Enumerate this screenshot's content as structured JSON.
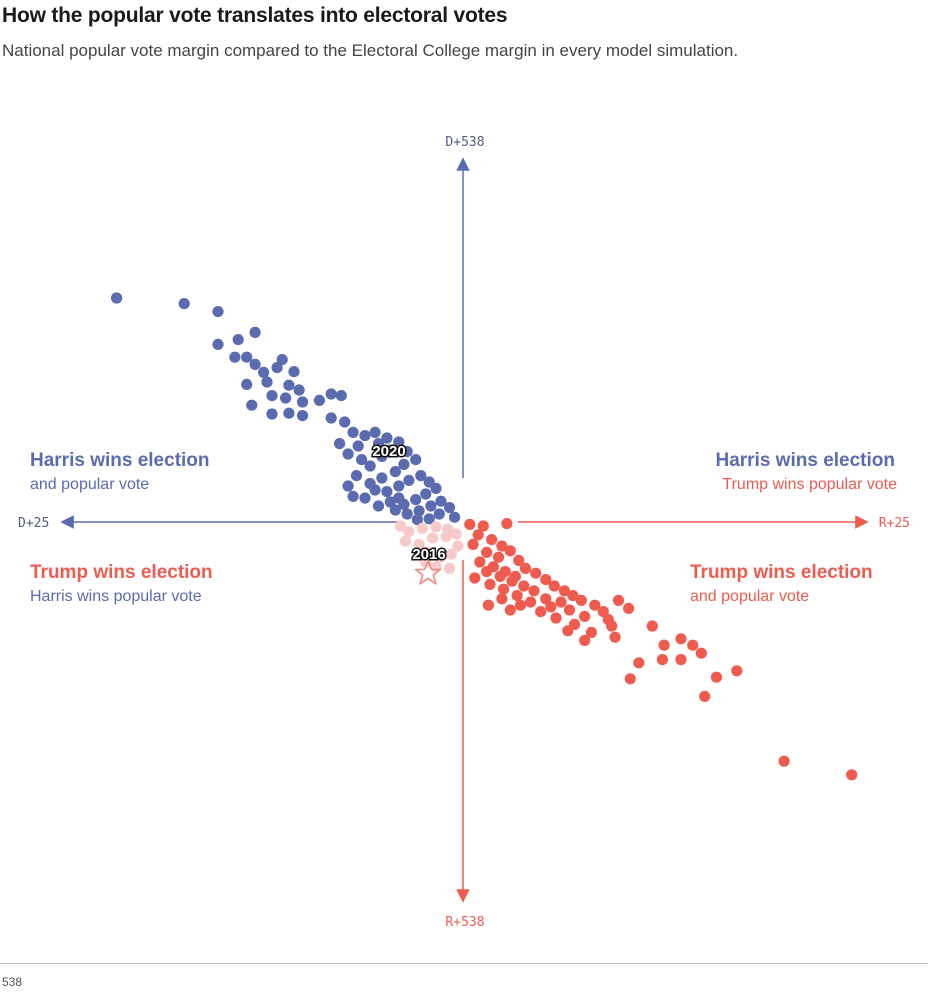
{
  "header": {
    "title": "How the popular vote translates into electoral votes",
    "subtitle": "National popular vote margin compared to the Electoral College margin in every model simulation."
  },
  "source": "538",
  "colors": {
    "harris": "#5b6bb0",
    "trump": "#ef5b4f",
    "trump_light": "#f7c9c9",
    "axis_text": "#555a80"
  },
  "chart_data": {
    "type": "scatter",
    "x_axis": {
      "left_label": "D+25",
      "right_label": "R+25",
      "range": [
        -25,
        25
      ],
      "unit": "popular vote margin (pts, R positive)"
    },
    "y_axis": {
      "top_label": "D+538",
      "bottom_label": "R+538",
      "range": [
        -538,
        538
      ],
      "unit": "electoral vote margin (D positive)"
    },
    "grid": false,
    "quadrants": {
      "top_left": {
        "title": "Harris wins election",
        "subtitle": "and popular vote"
      },
      "top_right": {
        "title": "Harris wins election",
        "subtitle": "Trump wins popular vote"
      },
      "bottom_left": {
        "title": "Trump wins election",
        "subtitle": "Harris wins popular vote"
      },
      "bottom_right": {
        "title": "Trump wins election",
        "subtitle": "and popular vote"
      }
    },
    "annotations": [
      {
        "label": "2020",
        "x": -4.5,
        "y": 74
      },
      {
        "label": "2016",
        "x": -2.1,
        "y": -74,
        "marker": "star"
      }
    ],
    "series": [
      {
        "color": "harris",
        "points": [
          [
            -20.5,
            280
          ],
          [
            -16.5,
            273
          ],
          [
            -14.5,
            263
          ],
          [
            -14.5,
            222
          ],
          [
            -13.5,
            206
          ],
          [
            -13.3,
            228
          ],
          [
            -12.8,
            206
          ],
          [
            -12.3,
            237
          ],
          [
            -12.3,
            197
          ],
          [
            -11.8,
            187
          ],
          [
            -12.8,
            172
          ],
          [
            -11.6,
            175
          ],
          [
            -11.0,
            193
          ],
          [
            -10.7,
            203
          ],
          [
            -10.0,
            188
          ],
          [
            -10.3,
            171
          ],
          [
            -9.7,
            165
          ],
          [
            -10.5,
            155
          ],
          [
            -9.5,
            150
          ],
          [
            -11.3,
            158
          ],
          [
            -12.5,
            146
          ],
          [
            -11.3,
            135
          ],
          [
            -10.3,
            136
          ],
          [
            -9.5,
            133
          ],
          [
            -8.5,
            152
          ],
          [
            -7.8,
            160
          ],
          [
            -7.2,
            158
          ],
          [
            -7.8,
            130
          ],
          [
            -7.0,
            125
          ],
          [
            -6.5,
            112
          ],
          [
            -5.8,
            108
          ],
          [
            -5.2,
            112
          ],
          [
            -5.0,
            98
          ],
          [
            -4.5,
            105
          ],
          [
            -6.2,
            95
          ],
          [
            -7.3,
            98
          ],
          [
            -6.8,
            85
          ],
          [
            -6.0,
            78
          ],
          [
            -5.5,
            70
          ],
          [
            -4.8,
            82
          ],
          [
            -4.3,
            90
          ],
          [
            -3.8,
            100
          ],
          [
            -3.3,
            88
          ],
          [
            -2.8,
            78
          ],
          [
            -3.5,
            72
          ],
          [
            -4.0,
            63
          ],
          [
            -4.8,
            55
          ],
          [
            -5.5,
            48
          ],
          [
            -6.3,
            58
          ],
          [
            -6.8,
            45
          ],
          [
            -6.5,
            32
          ],
          [
            -5.8,
            30
          ],
          [
            -5.2,
            40
          ],
          [
            -4.5,
            38
          ],
          [
            -3.8,
            45
          ],
          [
            -3.2,
            52
          ],
          [
            -2.5,
            58
          ],
          [
            -2.0,
            50
          ],
          [
            -1.6,
            42
          ],
          [
            -2.2,
            35
          ],
          [
            -2.8,
            28
          ],
          [
            -3.5,
            22
          ],
          [
            -4.0,
            15
          ],
          [
            -3.3,
            10
          ],
          [
            -2.6,
            14
          ],
          [
            -1.9,
            20
          ],
          [
            -1.3,
            26
          ],
          [
            -0.8,
            18
          ],
          [
            -1.4,
            10
          ],
          [
            -2.0,
            4
          ],
          [
            -2.7,
            3
          ],
          [
            -0.5,
            6
          ],
          [
            -3.8,
            30
          ],
          [
            -5.0,
            20
          ],
          [
            -4.3,
            25
          ]
        ]
      },
      {
        "color": "trump_light",
        "points": [
          [
            -3.7,
            -5
          ],
          [
            -3.2,
            -12
          ],
          [
            -2.4,
            -8
          ],
          [
            -1.6,
            -6
          ],
          [
            -0.9,
            -9
          ],
          [
            -3.4,
            -24
          ],
          [
            -2.6,
            -28
          ],
          [
            -1.8,
            -20
          ],
          [
            -1.0,
            -18
          ],
          [
            -0.4,
            -15
          ],
          [
            -2.1,
            -38
          ],
          [
            -1.3,
            -44
          ],
          [
            -0.7,
            -40
          ],
          [
            -1.6,
            -56
          ],
          [
            -0.8,
            -58
          ],
          [
            -2.2,
            -50
          ],
          [
            -0.3,
            -30
          ]
        ]
      },
      {
        "color": "trump",
        "points": [
          [
            0.4,
            -3
          ],
          [
            1.2,
            -5
          ],
          [
            2.6,
            -2
          ],
          [
            0.9,
            -16
          ],
          [
            1.7,
            -22
          ],
          [
            2.3,
            -30
          ],
          [
            0.6,
            -28
          ],
          [
            1.4,
            -38
          ],
          [
            2.1,
            -44
          ],
          [
            2.8,
            -36
          ],
          [
            3.3,
            -48
          ],
          [
            1.0,
            -50
          ],
          [
            1.8,
            -56
          ],
          [
            2.5,
            -62
          ],
          [
            3.1,
            -68
          ],
          [
            3.7,
            -58
          ],
          [
            4.3,
            -64
          ],
          [
            4.9,
            -72
          ],
          [
            5.4,
            -80
          ],
          [
            6.0,
            -86
          ],
          [
            6.5,
            -92
          ],
          [
            7.0,
            -98
          ],
          [
            5.8,
            -100
          ],
          [
            4.9,
            -96
          ],
          [
            4.2,
            -86
          ],
          [
            3.6,
            -80
          ],
          [
            2.9,
            -74
          ],
          [
            2.2,
            -68
          ],
          [
            1.4,
            -62
          ],
          [
            0.7,
            -70
          ],
          [
            1.6,
            -78
          ],
          [
            2.4,
            -84
          ],
          [
            3.2,
            -92
          ],
          [
            4.0,
            -100
          ],
          [
            5.2,
            -106
          ],
          [
            6.3,
            -110
          ],
          [
            7.2,
            -118
          ],
          [
            7.8,
            -104
          ],
          [
            8.3,
            -112
          ],
          [
            6.6,
            -128
          ],
          [
            5.5,
            -120
          ],
          [
            4.6,
            -112
          ],
          [
            3.4,
            -104
          ],
          [
            2.3,
            -96
          ],
          [
            1.5,
            -104
          ],
          [
            2.8,
            -110
          ],
          [
            6.2,
            -136
          ],
          [
            7.6,
            -138
          ],
          [
            8.6,
            -122
          ],
          [
            9.2,
            -98
          ],
          [
            9.8,
            -108
          ],
          [
            8.8,
            -130
          ],
          [
            7.2,
            -148
          ],
          [
            9.0,
            -144
          ],
          [
            11.2,
            -130
          ],
          [
            11.9,
            -154
          ],
          [
            11.8,
            -172
          ],
          [
            12.9,
            -172
          ],
          [
            10.4,
            -176
          ],
          [
            9.9,
            -196
          ],
          [
            15.0,
            -194
          ],
          [
            14.3,
            -218
          ],
          [
            16.2,
            -186
          ],
          [
            14.1,
            -164
          ],
          [
            12.9,
            -146
          ],
          [
            13.6,
            -154
          ],
          [
            19.0,
            -299
          ],
          [
            23.0,
            -316
          ]
        ]
      }
    ]
  }
}
